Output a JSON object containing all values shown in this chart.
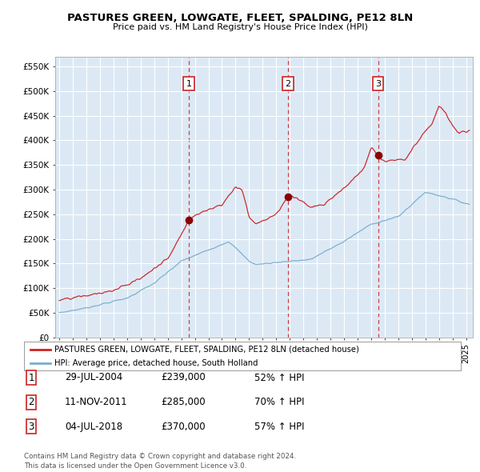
{
  "title": "PASTURES GREEN, LOWGATE, FLEET, SPALDING, PE12 8LN",
  "subtitle": "Price paid vs. HM Land Registry's House Price Index (HPI)",
  "fig_bg_color": "#ffffff",
  "plot_bg_color": "#dce9f5",
  "red_line_color": "#cc2222",
  "blue_line_color": "#7aadcc",
  "grid_color": "#ffffff",
  "ylim": [
    0,
    570000
  ],
  "yticks": [
    0,
    50000,
    100000,
    150000,
    200000,
    250000,
    300000,
    350000,
    400000,
    450000,
    500000,
    550000
  ],
  "ytick_labels": [
    "£0",
    "£50K",
    "£100K",
    "£150K",
    "£200K",
    "£250K",
    "£300K",
    "£350K",
    "£400K",
    "£450K",
    "£500K",
    "£550K"
  ],
  "xlim_start": 1994.7,
  "xlim_end": 2025.5,
  "xtick_years": [
    1995,
    1996,
    1997,
    1998,
    1999,
    2000,
    2001,
    2002,
    2003,
    2004,
    2005,
    2006,
    2007,
    2008,
    2009,
    2010,
    2011,
    2012,
    2013,
    2014,
    2015,
    2016,
    2017,
    2018,
    2019,
    2020,
    2021,
    2022,
    2023,
    2024,
    2025
  ],
  "sale_markers": [
    {
      "label": "1",
      "year": 2004.57,
      "price": 239000
    },
    {
      "label": "2",
      "year": 2011.87,
      "price": 285000
    },
    {
      "label": "3",
      "year": 2018.51,
      "price": 370000
    }
  ],
  "legend_red": "PASTURES GREEN, LOWGATE, FLEET, SPALDING, PE12 8LN (detached house)",
  "legend_blue": "HPI: Average price, detached house, South Holland",
  "table_rows": [
    {
      "num": "1",
      "date": "29-JUL-2004",
      "price": "£239,000",
      "hpi": "52% ↑ HPI"
    },
    {
      "num": "2",
      "date": "11-NOV-2011",
      "price": "£285,000",
      "hpi": "70% ↑ HPI"
    },
    {
      "num": "3",
      "date": "04-JUL-2018",
      "price": "£370,000",
      "hpi": "57% ↑ HPI"
    }
  ],
  "footer": "Contains HM Land Registry data © Crown copyright and database right 2024.\nThis data is licensed under the Open Government Licence v3.0."
}
